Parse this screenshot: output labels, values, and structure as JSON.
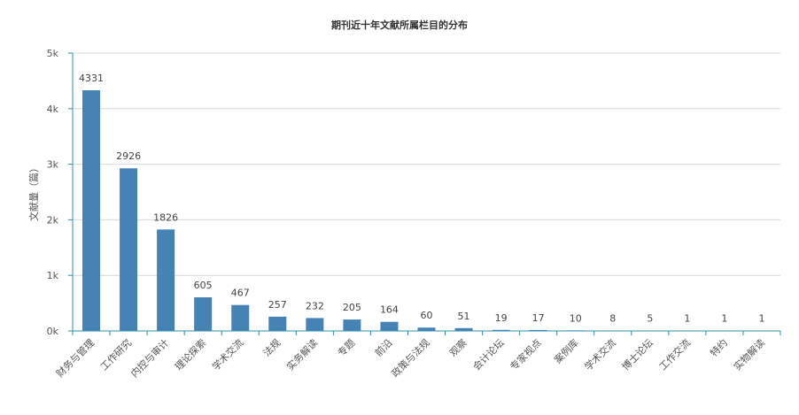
{
  "chart_data": {
    "type": "bar",
    "title": "期刊近十年文献所属栏目的分布",
    "ylabel": "文献量（篇）",
    "xlabel": "",
    "ylim": [
      0,
      5000
    ],
    "yticks": [
      {
        "value": 0,
        "label": "0k"
      },
      {
        "value": 1000,
        "label": "1k"
      },
      {
        "value": 2000,
        "label": "2k"
      },
      {
        "value": 3000,
        "label": "3k"
      },
      {
        "value": 4000,
        "label": "4k"
      },
      {
        "value": 5000,
        "label": "5k"
      }
    ],
    "grid": true,
    "legend": "none",
    "bar_color": "#4682b4",
    "categories": [
      "财务与管理",
      "工作研究",
      "内控与审计",
      "理论探索",
      "学术交流",
      "法规",
      "实务解读",
      "专题",
      "前沿",
      "政策与法规",
      "观察",
      "会计论坛",
      "专家视点",
      "案例库",
      "学术交流",
      "博士论坛",
      "工作交流",
      "特约",
      "实物解读"
    ],
    "values": [
      4331,
      2926,
      1826,
      605,
      467,
      257,
      232,
      205,
      164,
      60,
      51,
      19,
      17,
      10,
      8,
      5,
      1,
      1,
      1
    ]
  }
}
